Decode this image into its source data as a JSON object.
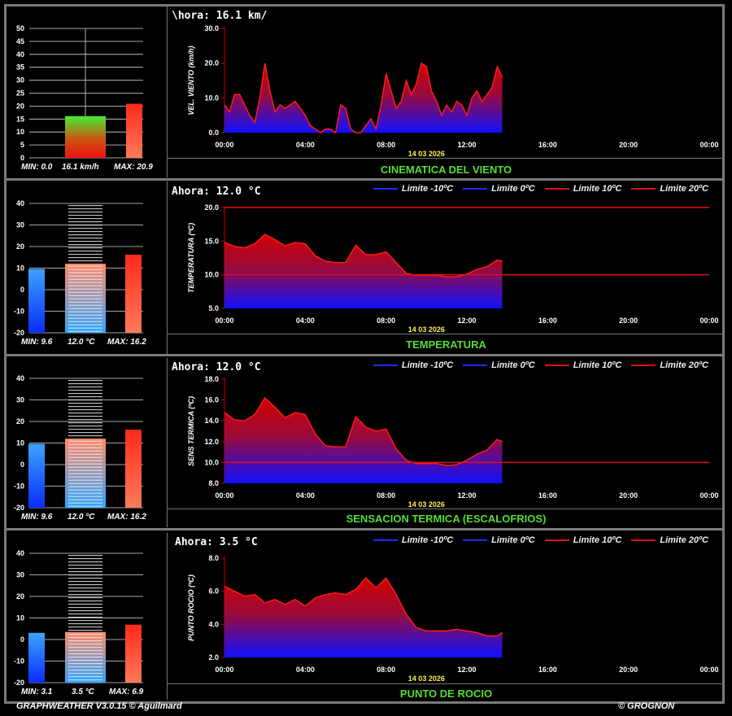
{
  "footer": {
    "left": "GRAPHWEATHER V3.0.15 © Aguilmard",
    "right": "© GROGNON"
  },
  "colors": {
    "limit_cold": "#1a2cff",
    "limit_warm": "#e01010",
    "caption": "#55dd33",
    "date": "#ffee55"
  },
  "legend": [
    "Limite -10ºC",
    "Limite 0ºC",
    "Limite 10ºC",
    "Limite 20ºC"
  ],
  "panels": [
    {
      "now_label": "\\hora: 16.1 km/",
      "caption": "CINEMATICA DEL VIENTO",
      "stats": {
        "min": "MIN: 0.0",
        "cur": "16.1 km/h",
        "max": "MAX: 20.9"
      },
      "chart_data": {
        "type": "area",
        "ylabel": "VEL. VIENTO (km/h)",
        "ylim": [
          0,
          30
        ],
        "yticks": [
          "0.0",
          "10.0",
          "20.0",
          "30.0"
        ],
        "xticks": [
          "00:00",
          "04:00",
          "08:00",
          "12:00",
          "16:00",
          "20:00",
          "00:00"
        ],
        "date": "14 03 2026",
        "hlines": [],
        "x": [
          0,
          0.25,
          0.5,
          0.75,
          1,
          1.25,
          1.5,
          1.75,
          2,
          2.25,
          2.5,
          2.75,
          3,
          3.25,
          3.5,
          3.75,
          4,
          4.25,
          4.5,
          4.75,
          5,
          5.25,
          5.5,
          5.75,
          6,
          6.25,
          6.5,
          6.75,
          7,
          7.25,
          7.5,
          7.75,
          8,
          8.25,
          8.5,
          8.75,
          9,
          9.25,
          9.5,
          9.75,
          10,
          10.25,
          10.5,
          10.75,
          11,
          11.25,
          11.5,
          11.75,
          12,
          12.25,
          12.5,
          12.75,
          13,
          13.25,
          13.5,
          13.75
        ],
        "series": [
          {
            "values": [
              8,
              6,
              11,
              11,
              8,
              5,
              3,
              10,
              20,
              12,
              6,
              8,
              7,
              8,
              9,
              7,
              5,
              2,
              1,
              0,
              1,
              1,
              0,
              8,
              7,
              1,
              0,
              0,
              2,
              4,
              1,
              8,
              17,
              12,
              7,
              9,
              15,
              11,
              14,
              20,
              19,
              12,
              9,
              5,
              8,
              6,
              9,
              8,
              5,
              10,
              12,
              9,
              11,
              13,
              19,
              16
            ]
          }
        ],
        "mini": {
          "ylim": [
            0,
            50
          ],
          "yticks": [
            0,
            5,
            10,
            15,
            20,
            25,
            30,
            35,
            40,
            45,
            50
          ],
          "min": 0,
          "cur": 16.1,
          "max": 20.9
        }
      }
    },
    {
      "now_label": "Ahora: 12.0 °C",
      "caption": "TEMPERATURA",
      "stats": {
        "min": "MIN: 9.6",
        "cur": "12.0 °C",
        "max": "MAX: 16.2"
      },
      "chart_data": {
        "type": "area",
        "ylabel": "TEMPERATURA (ºC)",
        "ylim": [
          5,
          20
        ],
        "yticks": [
          "5.0",
          "10.0",
          "15.0",
          "20.0"
        ],
        "xticks": [
          "00:00",
          "04:00",
          "08:00",
          "12:00",
          "16:00",
          "20:00",
          "00:00"
        ],
        "date": "14 03 2026",
        "hlines": [
          10,
          20
        ],
        "x": [
          0,
          0.5,
          1,
          1.5,
          2,
          2.5,
          3,
          3.5,
          4,
          4.5,
          5,
          5.5,
          6,
          6.5,
          7,
          7.5,
          8,
          8.5,
          9,
          9.5,
          10,
          10.5,
          11,
          11.5,
          12,
          12.5,
          13,
          13.5,
          13.75
        ],
        "series": [
          {
            "values": [
              14.8,
              14.2,
              14,
              14.6,
              16,
              15.2,
              14.3,
              14.8,
              14.6,
              12.8,
              12,
              11.8,
              11.8,
              14.4,
              13,
              13,
              13.4,
              11.8,
              10.2,
              9.9,
              9.9,
              9.9,
              9.7,
              9.7,
              10.1,
              10.8,
              11.2,
              12.2,
              12
            ]
          }
        ],
        "mini": {
          "ylim": [
            -20,
            40
          ],
          "yticks": [
            -20,
            -10,
            0,
            10,
            20,
            30,
            40
          ],
          "min": 9.6,
          "cur": 12.0,
          "max": 16.2
        }
      }
    },
    {
      "now_label": "Ahora: 12.0 °C",
      "caption": "SENSACION TERMICA (ESCALOFRIOS)",
      "stats": {
        "min": "MIN: 9.6",
        "cur": "12.0 °C",
        "max": "MAX: 16.2"
      },
      "chart_data": {
        "type": "area",
        "ylabel": "SENS TERMICA (ºC)",
        "ylim": [
          8,
          18
        ],
        "yticks": [
          "8.0",
          "10.0",
          "12.0",
          "14.0",
          "16.0",
          "18.0"
        ],
        "xticks": [
          "00:00",
          "04:00",
          "08:00",
          "12:00",
          "16:00",
          "20:00",
          "00:00"
        ],
        "date": "14 03 2026",
        "hlines": [
          10
        ],
        "x": [
          0,
          0.5,
          1,
          1.5,
          2,
          2.5,
          3,
          3.5,
          4,
          4.5,
          5,
          5.5,
          6,
          6.5,
          7,
          7.5,
          8,
          8.5,
          9,
          9.5,
          10,
          10.5,
          11,
          11.5,
          12,
          12.5,
          13,
          13.5,
          13.75
        ],
        "series": [
          {
            "values": [
              14.8,
              14.1,
              14,
              14.6,
              16.2,
              15.3,
              14.3,
              14.8,
              14.6,
              12.7,
              11.6,
              11.5,
              11.5,
              14.4,
              13.4,
              13,
              13.2,
              11.3,
              10.2,
              9.9,
              9.9,
              9.9,
              9.7,
              9.8,
              10.2,
              10.8,
              11.2,
              12.2,
              12
            ]
          }
        ],
        "mini": {
          "ylim": [
            -20,
            40
          ],
          "yticks": [
            -20,
            -10,
            0,
            10,
            20,
            30,
            40
          ],
          "min": 9.6,
          "cur": 12.0,
          "max": 16.2
        }
      }
    },
    {
      "now_label": "Ahora: 3.5 °C",
      "caption": "PUNTO DE ROCIO",
      "stats": {
        "min": "MIN: 3.1",
        "cur": "3.5 °C",
        "max": "MAX: 6.9"
      },
      "chart_data": {
        "type": "area",
        "ylabel": "PUNTO ROCIO (ºC)",
        "ylim": [
          2,
          8
        ],
        "yticks": [
          "2.0",
          "4.0",
          "6.0",
          "8.0"
        ],
        "xticks": [
          "00:00",
          "04:00",
          "08:00",
          "12:00",
          "16:00",
          "20:00",
          "00:00"
        ],
        "date": "14 03 2026",
        "hlines": [],
        "x": [
          0,
          0.5,
          1,
          1.5,
          2,
          2.5,
          3,
          3.5,
          4,
          4.5,
          5,
          5.5,
          6,
          6.5,
          7,
          7.5,
          8,
          8.5,
          9,
          9.5,
          10,
          10.5,
          11,
          11.5,
          12,
          12.5,
          13,
          13.5,
          13.75
        ],
        "series": [
          {
            "values": [
              6.3,
              6.0,
              5.7,
              5.8,
              5.3,
              5.5,
              5.2,
              5.5,
              5.1,
              5.6,
              5.8,
              5.9,
              5.8,
              6.1,
              6.8,
              6.2,
              6.8,
              5.8,
              4.6,
              3.8,
              3.6,
              3.6,
              3.6,
              3.7,
              3.6,
              3.5,
              3.3,
              3.3,
              3.5
            ]
          }
        ],
        "mini": {
          "ylim": [
            -20,
            40
          ],
          "yticks": [
            -20,
            -10,
            0,
            10,
            20,
            30,
            40
          ],
          "min": 3.1,
          "cur": 3.5,
          "max": 6.9
        }
      }
    }
  ]
}
